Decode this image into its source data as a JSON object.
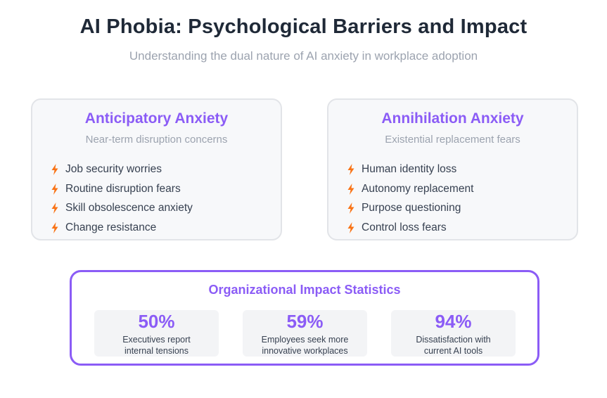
{
  "header": {
    "title": "AI Phobia: Psychological Barriers and Impact",
    "subtitle": "Understanding the dual nature of AI anxiety in workplace adoption"
  },
  "cards": [
    {
      "title": "Anticipatory Anxiety",
      "subtitle": "Near-term disruption concerns",
      "items": [
        "Job security worries",
        "Routine disruption fears",
        "Skill obsolescence anxiety",
        "Change resistance"
      ]
    },
    {
      "title": "Annihilation Anxiety",
      "subtitle": "Existential replacement fears",
      "items": [
        "Human identity loss",
        "Autonomy replacement",
        "Purpose questioning",
        "Control loss fears"
      ]
    }
  ],
  "stats": {
    "title": "Organizational Impact Statistics",
    "items": [
      {
        "value": "50%",
        "label": "Executives report\ninternal tensions"
      },
      {
        "value": "59%",
        "label": "Employees seek more\ninnovative workplaces"
      },
      {
        "value": "94%",
        "label": "Dissatisfaction with\ncurrent AI tools"
      }
    ]
  },
  "colors": {
    "accent": "#8b5cf6",
    "bolt": "#f97316",
    "card_bg": "#f7f8fa",
    "title": "#1f2937",
    "muted": "#9ca3af"
  },
  "icons": {
    "bullet": "lightning-bolt-icon"
  }
}
